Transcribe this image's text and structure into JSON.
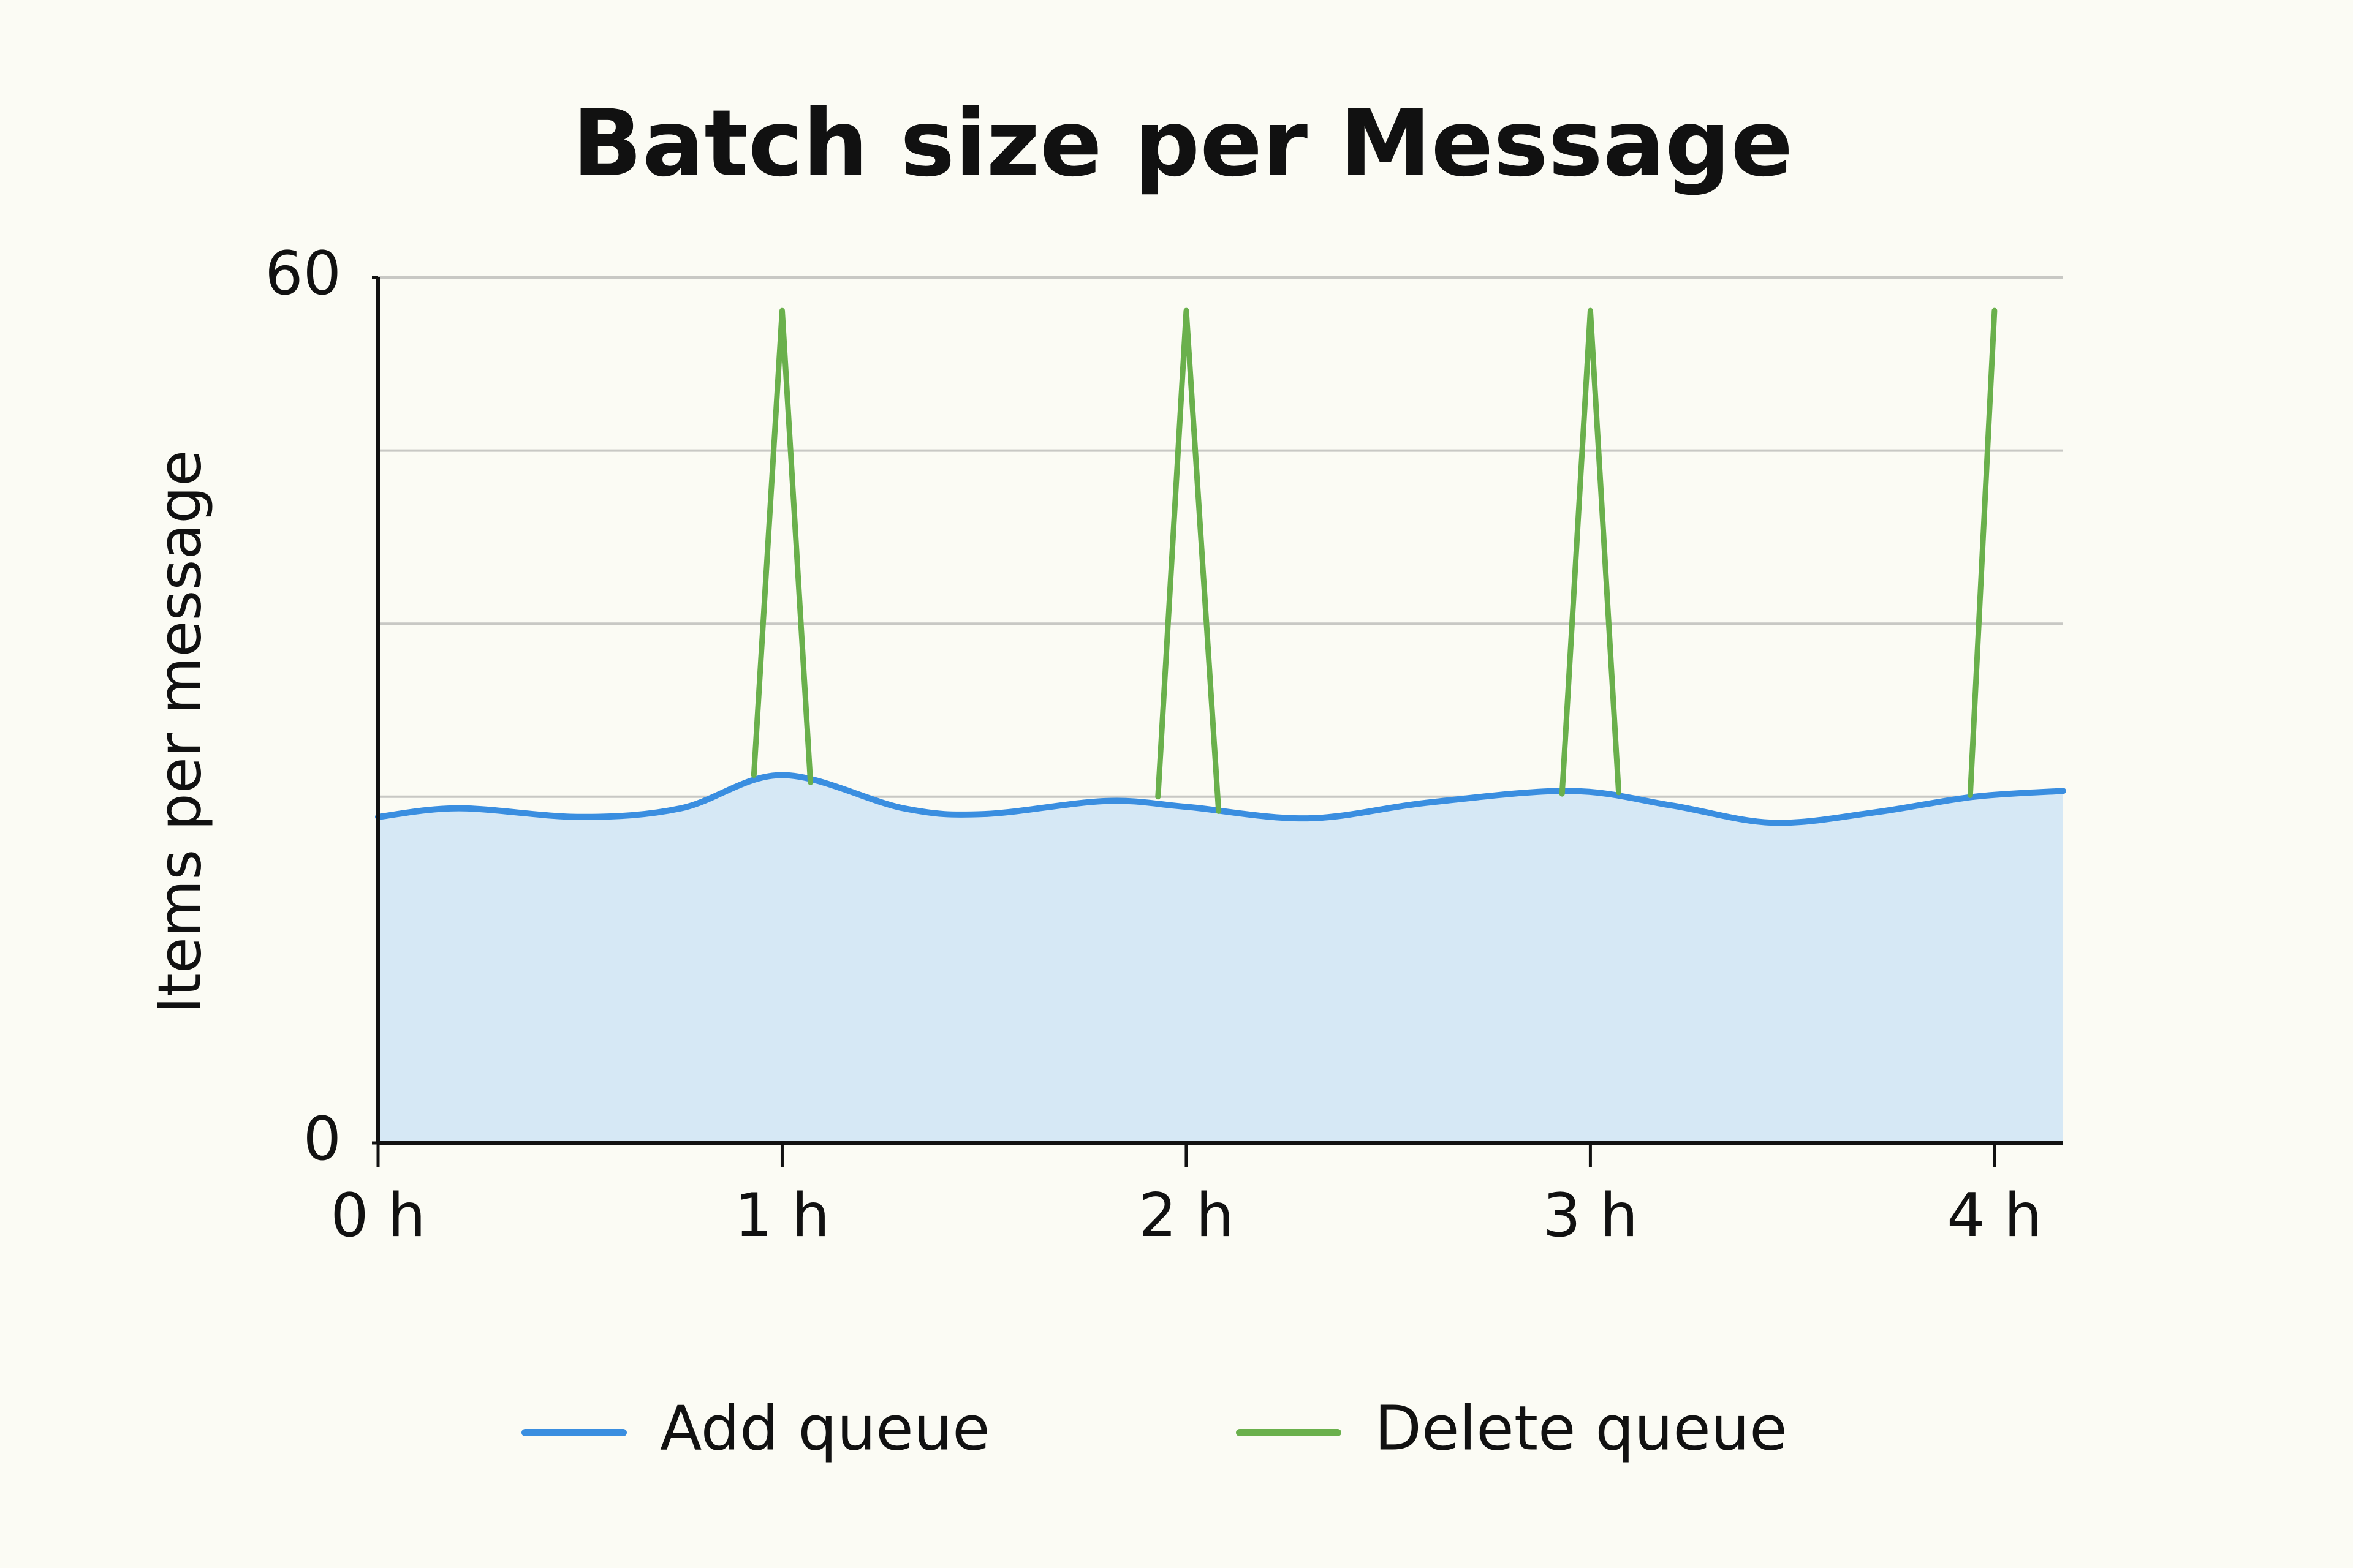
{
  "chart_data": {
    "type": "line",
    "title": "Batch size per Message",
    "y_label": "Items per message",
    "xlim": [
      0,
      4.17
    ],
    "ylim": [
      0,
      60
    ],
    "xticks": [
      {
        "value": 0,
        "label": "0 h"
      },
      {
        "value": 1,
        "label": "1 h"
      },
      {
        "value": 2,
        "label": "2 h"
      },
      {
        "value": 3,
        "label": "3 h"
      },
      {
        "value": 4,
        "label": "4 h"
      }
    ],
    "yticks": [
      0,
      60
    ],
    "ygrid": [
      24,
      36,
      48,
      60
    ],
    "legend": "bottom",
    "series": [
      {
        "name": "Add queue",
        "color": "#3a8ee0",
        "fill": "#d6e8f5",
        "x": [
          0,
          0.2,
          0.5,
          0.75,
          1.0,
          1.3,
          1.5,
          1.8,
          2.0,
          2.3,
          2.6,
          2.95,
          3.2,
          3.45,
          3.7,
          3.95,
          4.17
        ],
        "values": [
          22.6,
          23.2,
          22.6,
          23.2,
          25.5,
          23.2,
          22.8,
          23.7,
          23.3,
          22.5,
          23.6,
          24.4,
          23.4,
          22.2,
          22.9,
          24.0,
          24.4
        ]
      },
      {
        "name": "Delete queue",
        "color": "#6ab04c",
        "x": [
          0.93,
          1.0,
          1.07,
          null,
          1.93,
          2.0,
          2.08,
          null,
          2.93,
          3.0,
          3.07,
          null,
          3.94,
          4.0
        ],
        "values": [
          25.5,
          57.7,
          25.0,
          null,
          24.0,
          57.7,
          23.0,
          null,
          24.2,
          57.7,
          24.3,
          null,
          24.1,
          57.7
        ]
      }
    ]
  }
}
